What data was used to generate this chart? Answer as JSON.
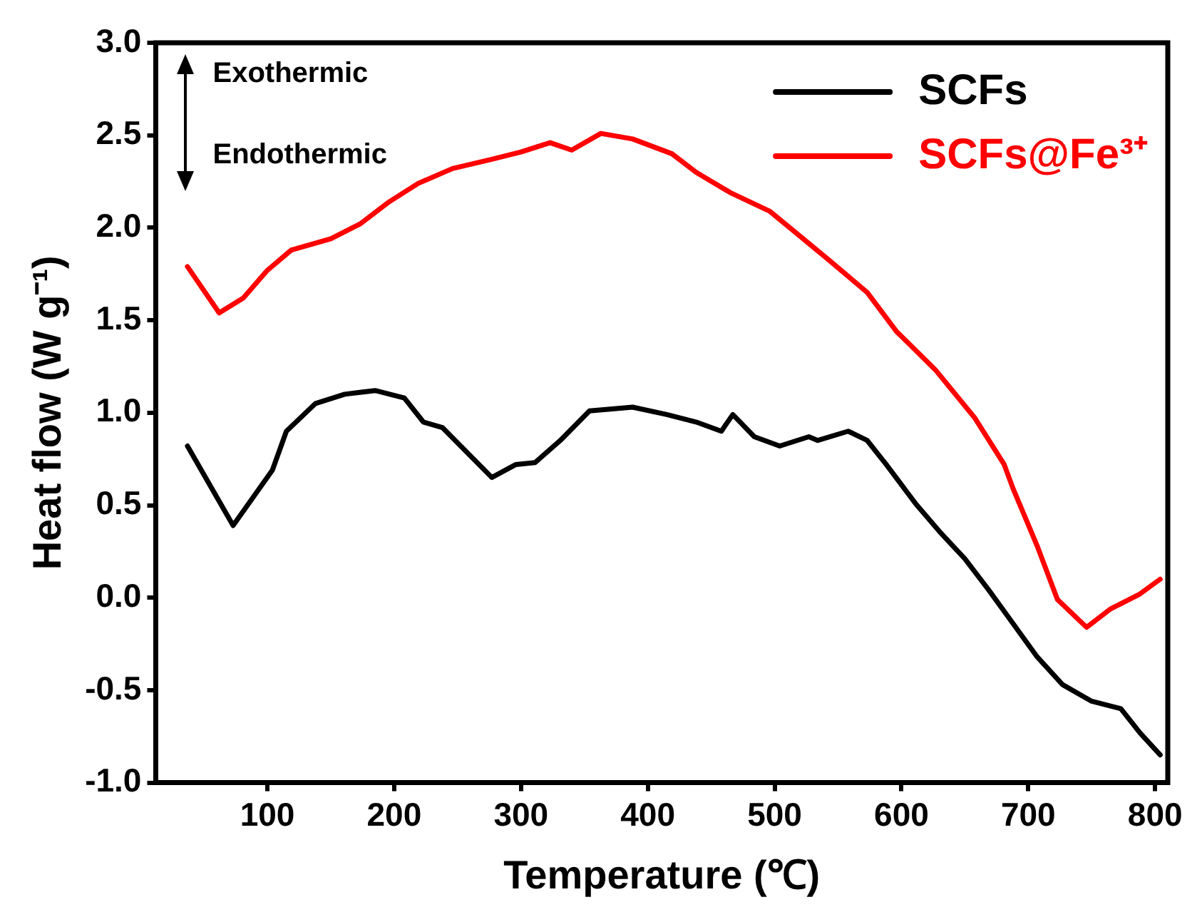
{
  "chart_data": {
    "type": "line",
    "xlabel": "Temperature (℃)",
    "ylabel": "Heat flow (W g⁻¹)",
    "annotations": [
      "Exothermic",
      "Endothermic"
    ],
    "xlim": [
      12,
      810
    ],
    "xticks": [
      100,
      200,
      300,
      400,
      500,
      600,
      700,
      800
    ],
    "ylim": [
      -1,
      3
    ],
    "yticks": [
      {
        "value": -1,
        "label": "-1.0"
      },
      {
        "value": -0.5,
        "label": "-0.5"
      },
      {
        "value": 0,
        "label": "0.0"
      },
      {
        "value": 0.5,
        "label": "0.5"
      },
      {
        "value": 1,
        "label": "1.0"
      },
      {
        "value": 1.5,
        "label": "1.5"
      },
      {
        "value": 2,
        "label": "2.0"
      },
      {
        "value": 2.5,
        "label": "2.5"
      },
      {
        "value": 3,
        "label": "3.0"
      }
    ],
    "legend": "top right",
    "marker": "none",
    "line_style": "solid",
    "series": [
      {
        "name": "SCFs",
        "color": "#000000",
        "x": [
          37,
          73,
          104,
          115,
          138,
          161,
          185,
          208,
          223,
          238,
          277,
          296,
          311,
          331,
          354,
          388,
          415,
          438,
          458,
          467,
          484,
          504,
          527,
          534,
          558,
          573,
          588,
          611,
          631,
          650,
          669,
          688,
          707,
          727,
          750,
          773,
          788,
          804
        ],
        "values": [
          0.82,
          0.39,
          0.69,
          0.9,
          1.05,
          1.1,
          1.12,
          1.08,
          0.95,
          0.92,
          0.65,
          0.72,
          0.73,
          0.85,
          1.01,
          1.03,
          0.99,
          0.95,
          0.9,
          0.99,
          0.87,
          0.82,
          0.87,
          0.85,
          0.9,
          0.85,
          0.72,
          0.51,
          0.35,
          0.21,
          0.04,
          -0.14,
          -0.32,
          -0.47,
          -0.56,
          -0.6,
          -0.73,
          -0.85
        ]
      },
      {
        "name": "SCFs@Fe³⁺",
        "color": "#ff0000",
        "x": [
          37,
          62,
          81,
          100,
          119,
          150,
          173,
          196,
          219,
          246,
          277,
          300,
          323,
          340,
          363,
          388,
          419,
          438,
          465,
          496,
          542,
          573,
          596,
          627,
          658,
          681,
          688,
          707,
          723,
          746,
          765,
          788,
          804
        ],
        "values": [
          1.79,
          1.54,
          1.62,
          1.77,
          1.88,
          1.94,
          2.02,
          2.14,
          2.24,
          2.32,
          2.37,
          2.41,
          2.46,
          2.42,
          2.51,
          2.48,
          2.4,
          2.3,
          2.19,
          2.09,
          1.83,
          1.65,
          1.44,
          1.23,
          0.97,
          0.72,
          0.59,
          0.28,
          -0.01,
          -0.16,
          -0.06,
          0.02,
          0.1
        ]
      }
    ]
  }
}
